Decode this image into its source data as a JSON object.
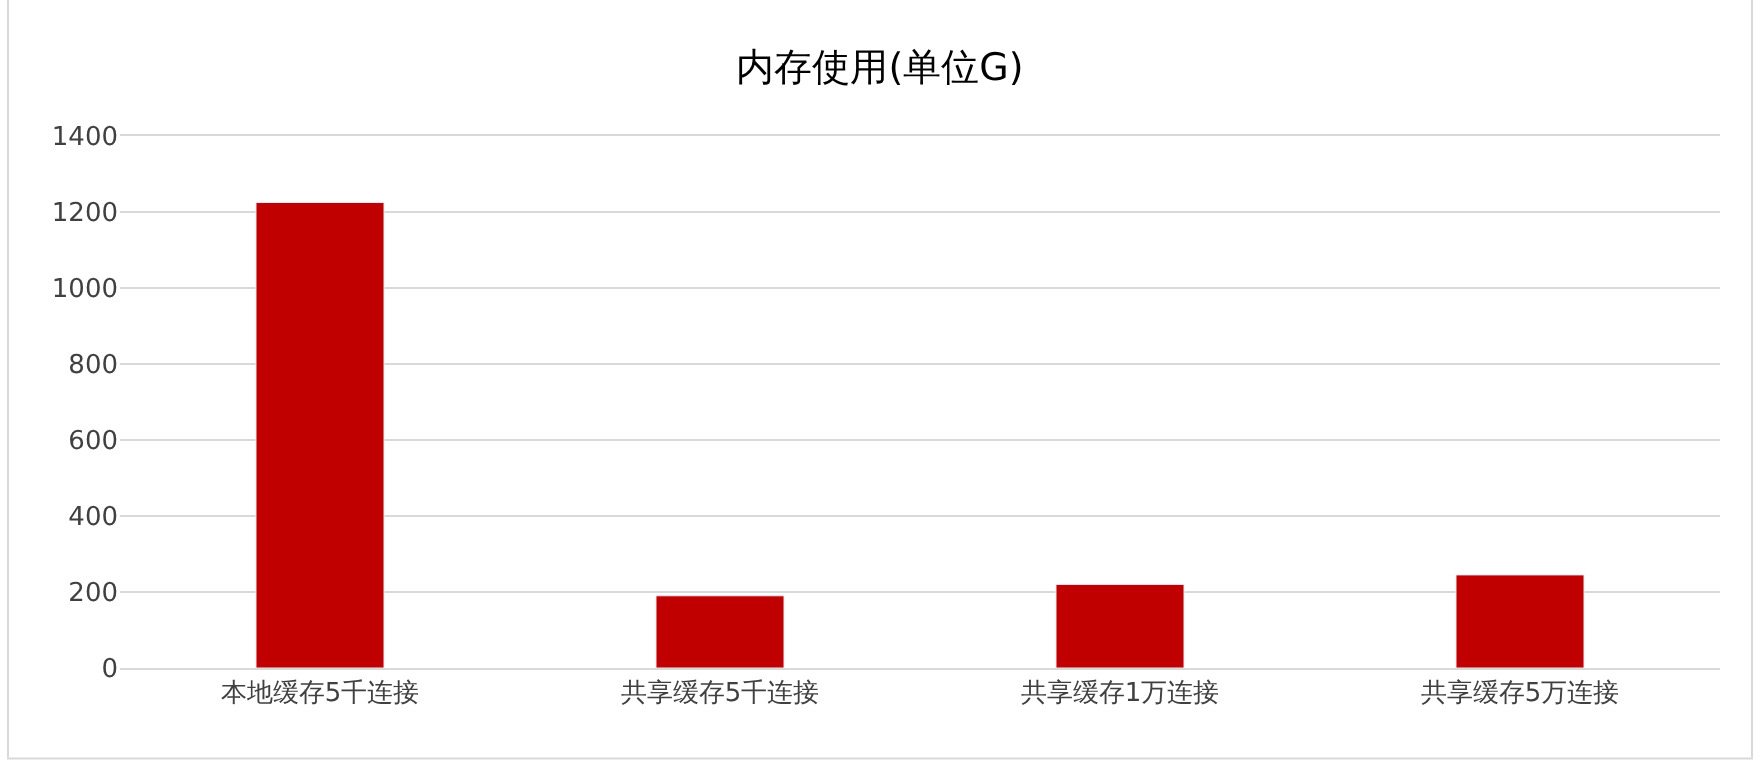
{
  "chart_data": {
    "type": "bar",
    "title": "内存使用(单位G)",
    "categories": [
      "本地缓存5千连接",
      "共享缓存5千连接",
      "共享缓存1万连接",
      "共享缓存5万连接"
    ],
    "values": [
      1225,
      190,
      220,
      245
    ],
    "color": "#c00000",
    "ylim": [
      0,
      1400
    ],
    "yticks": [
      0,
      200,
      400,
      600,
      800,
      1000,
      1200,
      1400
    ],
    "grid": "y"
  }
}
